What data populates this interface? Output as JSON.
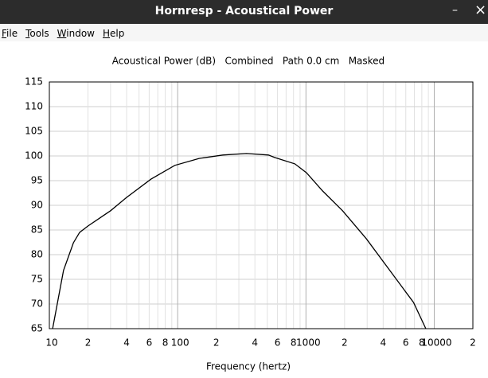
{
  "window": {
    "title": "Hornresp - Acoustical Power",
    "minimize": "–",
    "close": "×",
    "menu": [
      "File",
      "Tools",
      "Window",
      "Help"
    ]
  },
  "chart_data": {
    "type": "line",
    "title": "Acoustical Power (dB)   Combined   Path 0.0 cm   Masked",
    "x_label": "Frequency (hertz)",
    "xscale": "log",
    "grid": true,
    "color": "#000000",
    "x": [
      10.6,
      12.9,
      15.4,
      17.2,
      20,
      30,
      40,
      62,
      95,
      147,
      225,
      344,
      510,
      570,
      820,
      1010,
      1350,
      1930,
      2960,
      4500,
      6900,
      8600
    ],
    "values": [
      65,
      76.8,
      82.4,
      84.5,
      85.8,
      88.9,
      91.6,
      95.3,
      98.1,
      99.5,
      100.2,
      100.5,
      100.2,
      99.7,
      98.4,
      96.6,
      92.9,
      88.9,
      83.2,
      76.8,
      70.3,
      65
    ],
    "xlim": [
      10,
      20000
    ],
    "ylim": [
      65,
      115
    ],
    "xticks": [
      10,
      {
        "value": 20,
        "label": "2"
      },
      {
        "value": 40,
        "label": "4"
      },
      {
        "value": 60,
        "label": "6"
      },
      {
        "value": 80,
        "label": "8"
      },
      100,
      {
        "value": 200,
        "label": "2"
      },
      {
        "value": 400,
        "label": "4"
      },
      {
        "value": 600,
        "label": "6"
      },
      {
        "value": 800,
        "label": "8"
      },
      1000,
      {
        "value": 2000,
        "label": "2"
      },
      {
        "value": 4000,
        "label": "4"
      },
      {
        "value": 6000,
        "label": "6"
      },
      {
        "value": 8000,
        "label": "8"
      },
      10000,
      {
        "value": 20000,
        "label": "2"
      }
    ],
    "xminor_grid": [
      30,
      50,
      70,
      90,
      300,
      500,
      700,
      900,
      3000,
      5000,
      7000,
      9000
    ],
    "yticks": [
      65,
      70,
      75,
      80,
      85,
      90,
      95,
      100,
      105,
      110,
      115
    ]
  }
}
